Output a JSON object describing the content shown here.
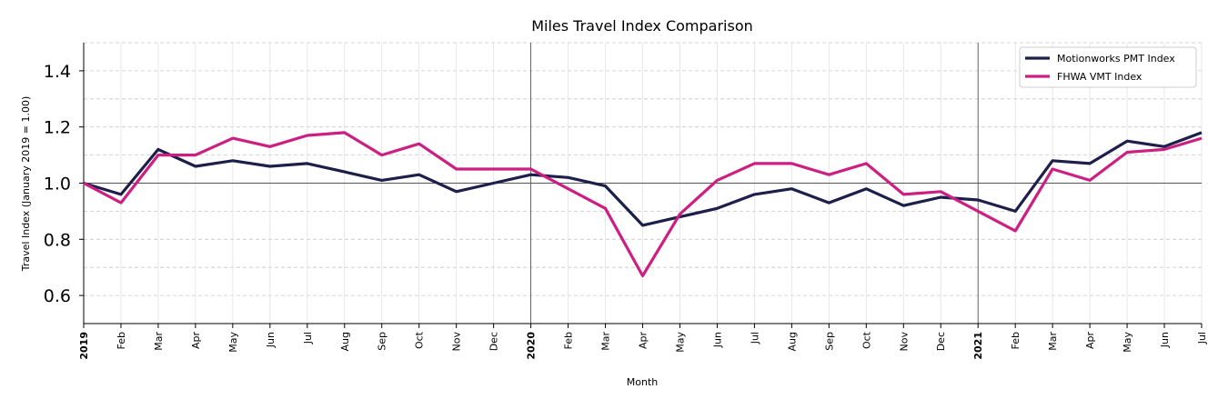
{
  "chart_data": {
    "type": "line",
    "title": "Miles Travel Index Comparison",
    "xlabel": "Month",
    "ylabel": "Travel Index (January 2019 = 1.00)",
    "ylim": [
      0.5,
      1.5
    ],
    "yticks": [
      0.6,
      0.8,
      1.0,
      1.2,
      1.4
    ],
    "ytick_labels": [
      "0.6",
      "0.8",
      "1.0",
      "1.2",
      "1.4"
    ],
    "grid": true,
    "reference_line": 1.0,
    "year_dividers": [
      "2020",
      "2021"
    ],
    "legend_position": "upper right",
    "x": [
      "2019",
      "Feb",
      "Mar",
      "Apr",
      "May",
      "Jun",
      "Jul",
      "Aug",
      "Sep",
      "Oct",
      "Nov",
      "Dec",
      "2020",
      "Feb",
      "Mar",
      "Apr",
      "May",
      "Jun",
      "Jul",
      "Aug",
      "Sep",
      "Oct",
      "Nov",
      "Dec",
      "2021",
      "Feb",
      "Mar",
      "Apr",
      "May",
      "Jun",
      "Jul"
    ],
    "year_label_indices": [
      0,
      12,
      24
    ],
    "series": [
      {
        "name": "Motionworks PMT Index",
        "color": "#1c1f4a",
        "values": [
          1.0,
          0.96,
          1.12,
          1.06,
          1.08,
          1.06,
          1.07,
          1.04,
          1.01,
          1.03,
          0.97,
          1.0,
          1.03,
          1.02,
          0.99,
          0.85,
          0.88,
          0.91,
          0.96,
          0.98,
          0.93,
          0.98,
          0.92,
          0.95,
          0.94,
          0.9,
          1.08,
          1.07,
          1.15,
          1.13,
          1.18
        ]
      },
      {
        "name": "FHWA VMT Index",
        "color": "#cc1f82",
        "values": [
          1.0,
          0.93,
          1.1,
          1.1,
          1.16,
          1.13,
          1.17,
          1.18,
          1.1,
          1.14,
          1.05,
          1.05,
          1.05,
          0.98,
          0.91,
          0.67,
          0.89,
          1.01,
          1.07,
          1.07,
          1.03,
          1.07,
          0.96,
          0.97,
          0.9,
          0.83,
          1.05,
          1.01,
          1.11,
          1.12,
          1.16
        ]
      }
    ]
  }
}
